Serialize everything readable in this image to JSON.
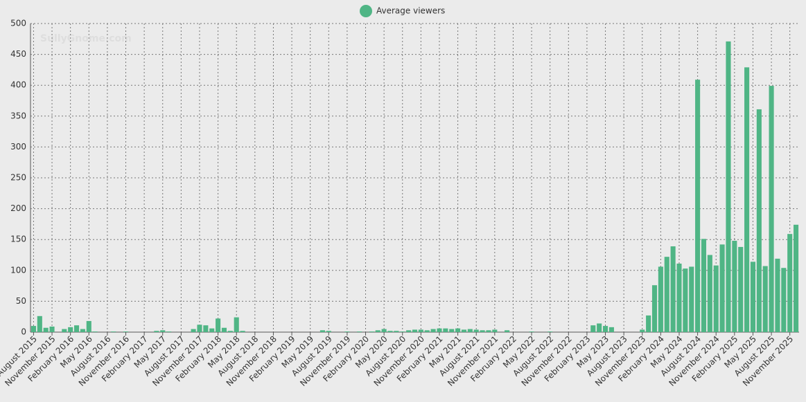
{
  "chart_data": {
    "type": "bar",
    "watermark": "SullyGnome.com",
    "series": [
      {
        "name": "Average viewers",
        "color": "#4fb585",
        "values": [
          10,
          26,
          7,
          9,
          0,
          5,
          8,
          11,
          5,
          18,
          1,
          0,
          0,
          1,
          0,
          1,
          0,
          0,
          0,
          0,
          2,
          3,
          1,
          0,
          0,
          0,
          5,
          12,
          11,
          6,
          22,
          7,
          2,
          24,
          2,
          0,
          0,
          0,
          0,
          0,
          0,
          0,
          0,
          0,
          0,
          0,
          0,
          3,
          2,
          0,
          0,
          1,
          0,
          1,
          0,
          1,
          3,
          5,
          2,
          2,
          1,
          3,
          4,
          4,
          3,
          5,
          6,
          6,
          5,
          6,
          4,
          5,
          4,
          3,
          3,
          4,
          0,
          3,
          0,
          0,
          0,
          1,
          0,
          0,
          1,
          0,
          0,
          0,
          0,
          0,
          0,
          11,
          14,
          10,
          8,
          0,
          0,
          0,
          0,
          4,
          27,
          76,
          106,
          122,
          139,
          111,
          103,
          106,
          409,
          151,
          125,
          108,
          142,
          471,
          148,
          138,
          429,
          114,
          361,
          107,
          399,
          119,
          104,
          159,
          174
        ]
      }
    ],
    "categories": [
      "August 2015",
      null,
      null,
      "November 2015",
      null,
      null,
      "February 2016",
      null,
      null,
      "May 2016",
      null,
      null,
      "August 2016",
      null,
      null,
      "November 2016",
      null,
      null,
      "February 2017",
      null,
      null,
      "May 2017",
      null,
      null,
      "August 2017",
      null,
      null,
      "November 2017",
      null,
      null,
      "February 2018",
      null,
      null,
      "May 2018",
      null,
      null,
      "August 2018",
      null,
      null,
      "November 2018",
      null,
      null,
      "February 2019",
      null,
      null,
      "May 2019",
      null,
      null,
      "August 2019",
      null,
      null,
      "November 2019",
      null,
      null,
      "February 2020",
      null,
      null,
      "May 2020",
      null,
      null,
      "August 2020",
      null,
      null,
      "November 2020",
      null,
      null,
      "February 2021",
      null,
      null,
      "May 2021",
      null,
      null,
      "August 2021",
      null,
      null,
      "November 2021",
      null,
      null,
      "February 2022",
      null,
      null,
      "May 2022",
      null,
      null,
      "August 2022",
      null,
      null,
      "November 2022",
      null,
      null,
      "February 2023",
      null,
      null,
      "May 2023",
      null,
      null,
      "August 2023",
      null,
      null,
      "November 2023",
      null,
      null,
      "February 2024",
      null,
      null,
      "May 2024",
      null,
      null,
      "August 2024",
      null,
      null,
      "November 2024",
      null,
      null,
      "February 2025",
      null,
      null,
      "May 2025",
      null,
      null,
      "August 2025",
      null,
      null,
      "November 2025",
      null
    ],
    "ylim": [
      0,
      500
    ],
    "yticks": [
      0,
      50,
      100,
      150,
      200,
      250,
      300,
      350,
      400,
      450,
      500
    ],
    "grid": true,
    "legend": "top"
  }
}
